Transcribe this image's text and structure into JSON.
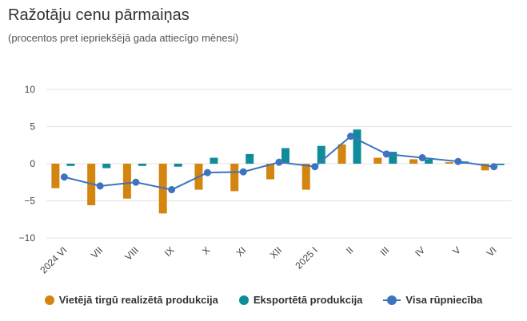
{
  "title": "Ražotāju cenu pārmaiņas",
  "subtitle": "(procentos pret iepriekšējā gada attiecīgo mēnesi)",
  "chart_data": {
    "type": "bar",
    "categories": [
      "2024 VI",
      "VII",
      "VIII",
      "IX",
      "X",
      "XI",
      "XII",
      "2025 I",
      "II",
      "III",
      "IV",
      "V",
      "VI"
    ],
    "yticks": [
      "10",
      "5",
      "0",
      "−5",
      "−10"
    ],
    "ylim": [
      -10,
      10
    ],
    "grid": true,
    "legend_position": "bottom",
    "series": [
      {
        "name": "Vietējā tirgū realizētā produkcija",
        "type": "bar",
        "color": "#d4850f",
        "values": [
          -3.3,
          -5.6,
          -4.7,
          -6.7,
          -3.5,
          -3.7,
          -2.1,
          -3.5,
          2.6,
          0.8,
          0.6,
          0.2,
          -0.9
        ]
      },
      {
        "name": "Eksportētā produkcija",
        "type": "bar",
        "color": "#0f8c99",
        "values": [
          -0.3,
          -0.6,
          -0.3,
          -0.4,
          0.8,
          1.3,
          2.1,
          2.4,
          4.6,
          1.6,
          0.6,
          0.3,
          -0.2
        ]
      },
      {
        "name": "Visa rūpniecība",
        "type": "line",
        "color": "#3d74c0",
        "values": [
          -1.8,
          -3.0,
          -2.5,
          -3.5,
          -1.2,
          -1.1,
          0.2,
          -0.4,
          3.7,
          1.3,
          0.8,
          0.3,
          -0.4
        ]
      }
    ]
  }
}
